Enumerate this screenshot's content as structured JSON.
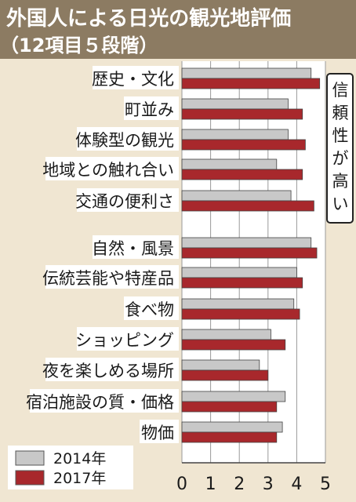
{
  "chart_data": {
    "type": "bar",
    "orientation": "horizontal",
    "title": "外国人による日光の観光地評価",
    "subtitle": "（12項目５段階）",
    "categories": [
      "歴史・文化",
      "町並み",
      "体験型の観光",
      "地域との触れ合い",
      "交通の便利さ",
      "自然・風景",
      "伝統芸能や特産品",
      "食べ物",
      "ショッピング",
      "夜を楽しめる場所",
      "宿泊施設の質・価格",
      "物価"
    ],
    "series": [
      {
        "name": "2014年",
        "values": [
          4.5,
          3.7,
          3.7,
          3.3,
          3.8,
          4.5,
          4.0,
          3.9,
          3.1,
          2.7,
          3.6,
          3.5
        ]
      },
      {
        "name": "2017年",
        "values": [
          4.8,
          4.2,
          4.3,
          4.2,
          4.6,
          4.7,
          4.2,
          4.1,
          3.6,
          3.0,
          3.3,
          3.3
        ]
      }
    ],
    "xlim": [
      0,
      5
    ],
    "xticks": [
      "0",
      "1",
      "2",
      "3",
      "4",
      "5"
    ],
    "annotation": "信頼性が高い",
    "grid": true,
    "legend_position": "bottom-left",
    "colors": {
      "series_2014": "#c8c8c8",
      "series_2017": "#a8282c",
      "panel": "#f0e6d2",
      "header": "#8c7b62",
      "label_background": "#ffffff",
      "text": "#1a1a1a"
    }
  }
}
